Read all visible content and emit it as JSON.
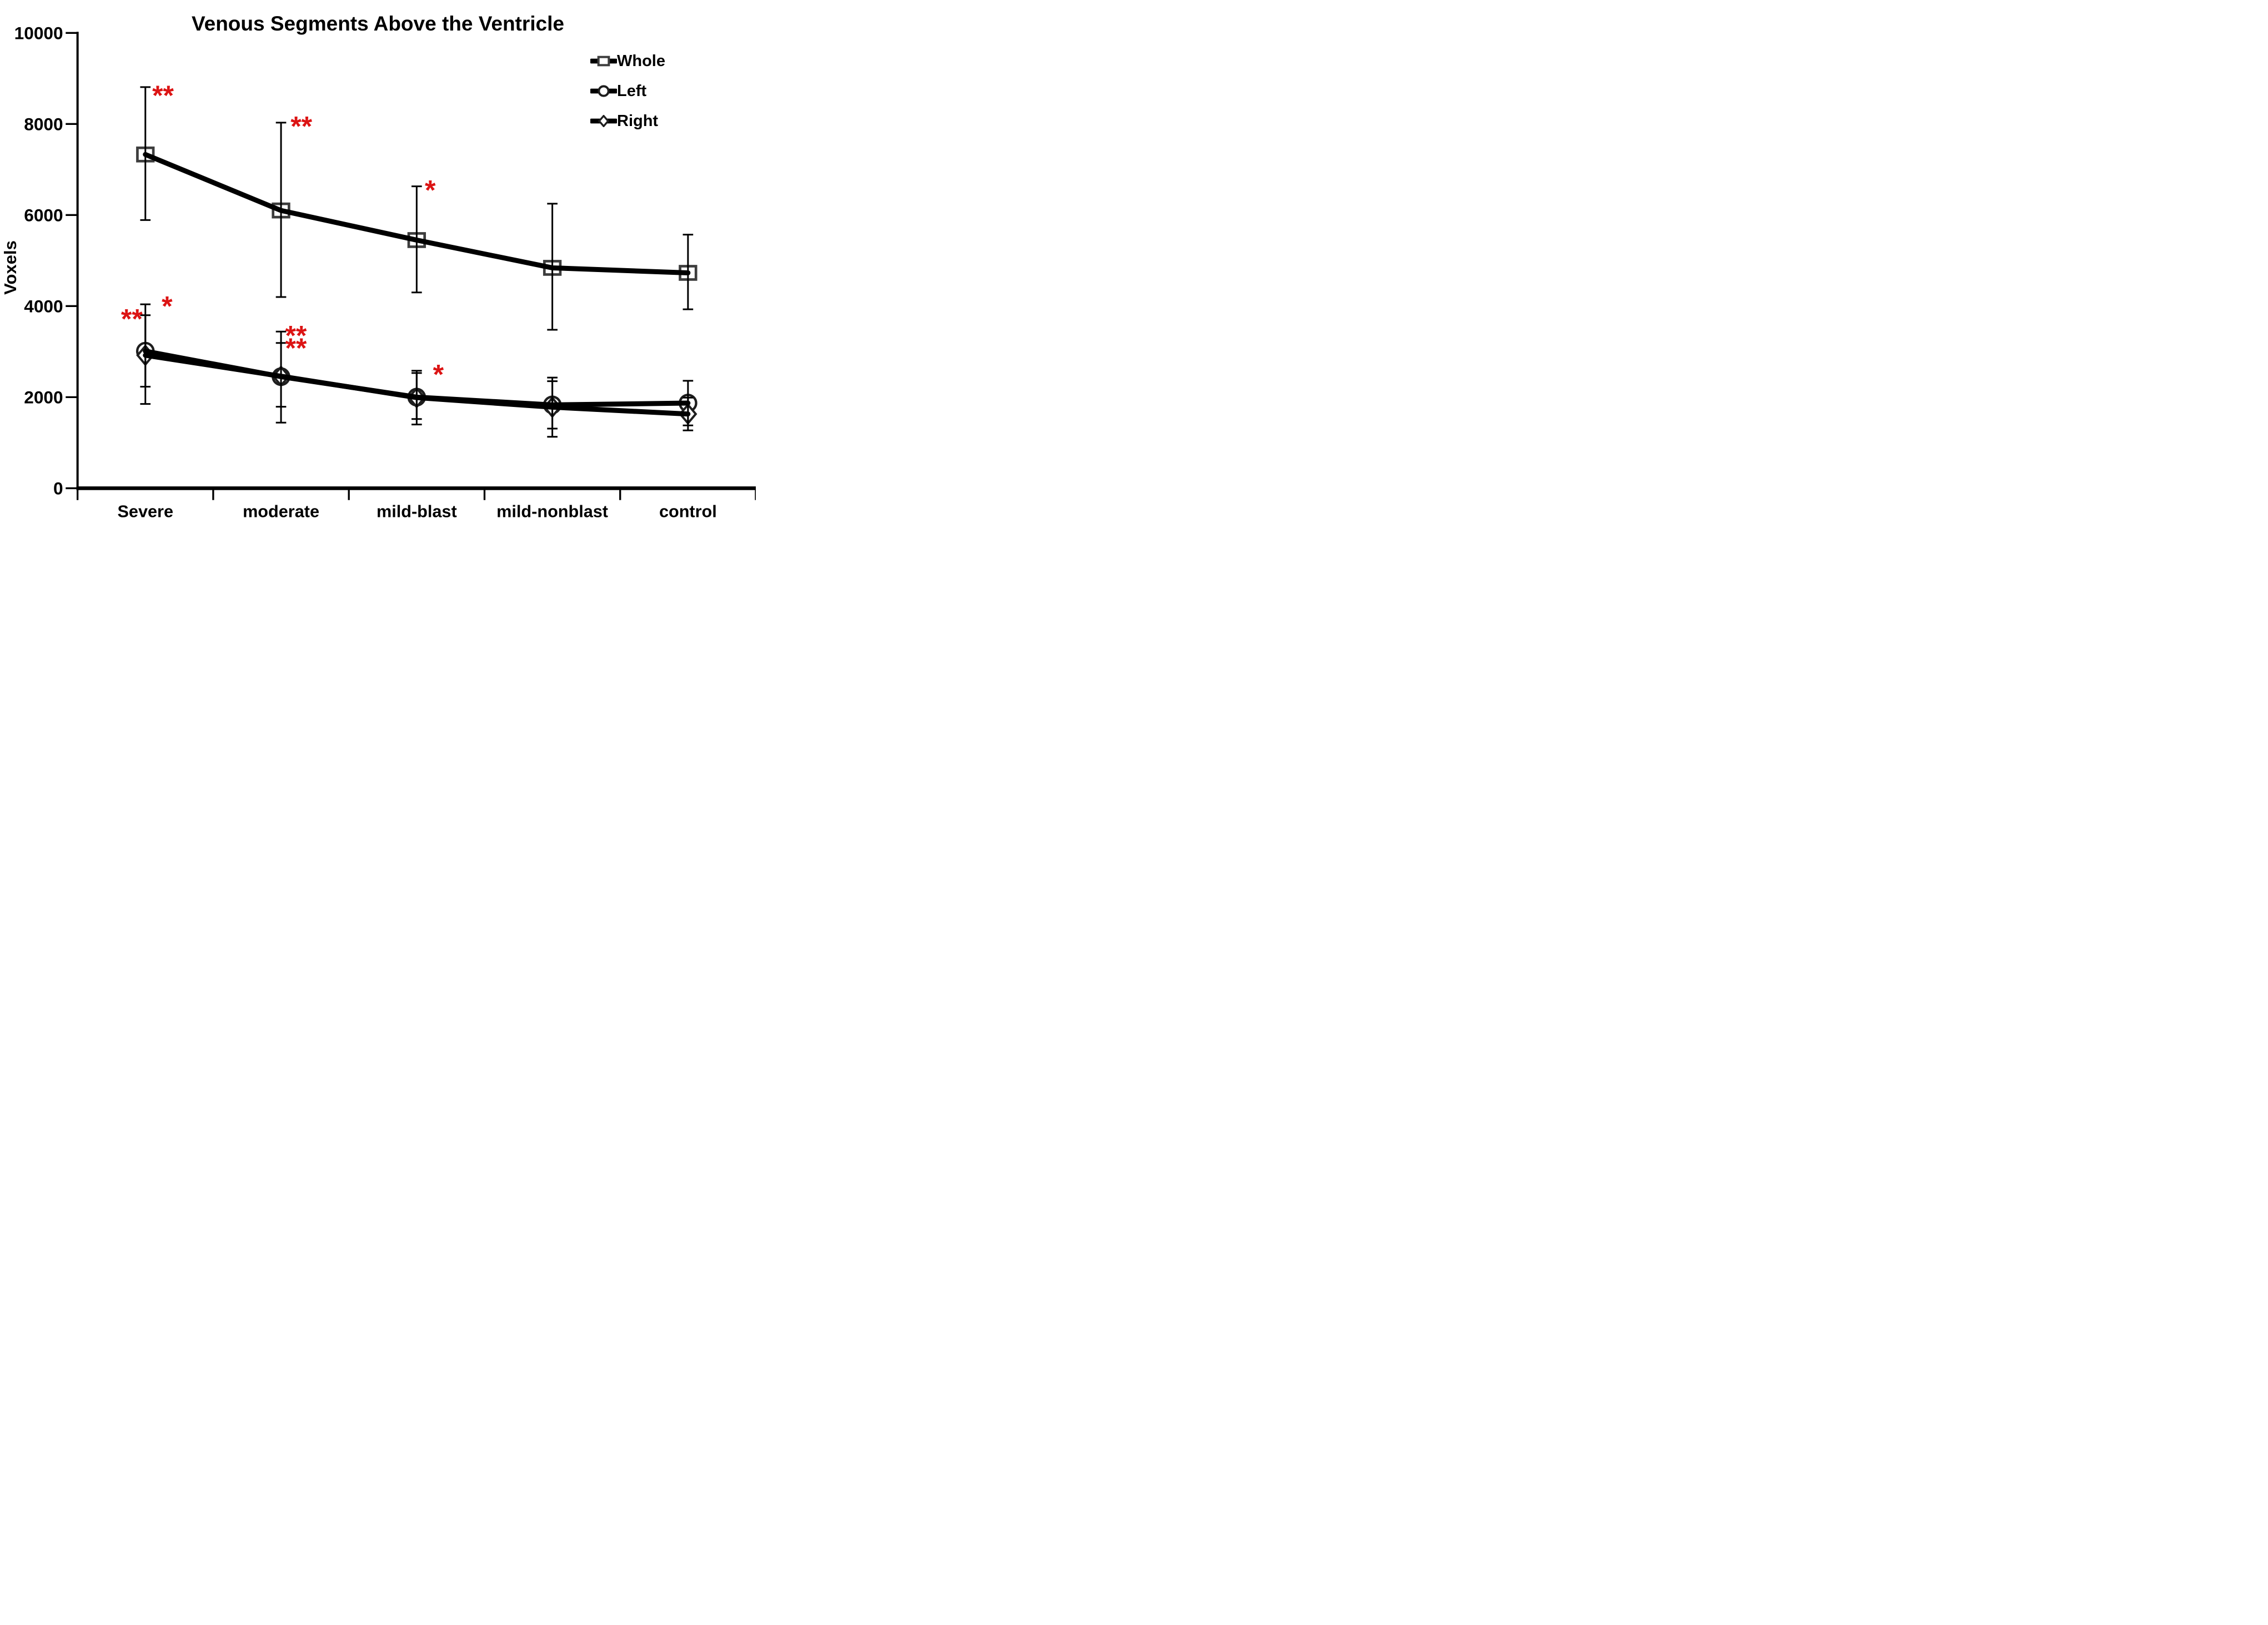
{
  "chart_data": {
    "type": "line",
    "title": "Venous Segments Above the Ventricle",
    "xlabel": "",
    "ylabel": "Voxels",
    "ylim": [
      0,
      10000
    ],
    "y_ticks": [
      0,
      2000,
      4000,
      6000,
      8000,
      10000
    ],
    "grid": false,
    "legend_position": "top-right",
    "categories": [
      "Severe",
      "moderate",
      "mild-blast",
      "mild-nonblast",
      "control"
    ],
    "series": [
      {
        "name": "Whole",
        "marker": "square",
        "values": [
          7330,
          6100,
          5450,
          4840,
          4730
        ],
        "err_hi": [
          8810,
          8030,
          6630,
          6250,
          5570
        ],
        "err_lo": [
          5890,
          4200,
          4300,
          3480,
          3930
        ]
      },
      {
        "name": "Left",
        "marker": "circle",
        "values": [
          3010,
          2450,
          2000,
          1830,
          1870
        ],
        "err_hi": [
          4040,
          3440,
          2580,
          2350,
          2360
        ],
        "err_lo": [
          1850,
          1440,
          1400,
          1310,
          1380
        ]
      },
      {
        "name": "Right",
        "marker": "diamond",
        "values": [
          2920,
          2460,
          1990,
          1780,
          1630
        ],
        "err_hi": [
          3800,
          3190,
          2530,
          2430,
          1990
        ],
        "err_lo": [
          2230,
          1790,
          1520,
          1130,
          1270
        ]
      }
    ],
    "annotations": [
      {
        "text": "**",
        "x_cat": 0.13,
        "value": 8730
      },
      {
        "text": "*",
        "x_cat": 0.16,
        "value": 4100
      },
      {
        "text": "**",
        "x_cat": -0.1,
        "value": 3820
      },
      {
        "text": "**",
        "x_cat": 1.15,
        "value": 8050
      },
      {
        "text": "**",
        "x_cat": 1.11,
        "value": 3455
      },
      {
        "text": "**",
        "x_cat": 1.11,
        "value": 3180
      },
      {
        "text": "*",
        "x_cat": 2.1,
        "value": 6650
      },
      {
        "text": "*",
        "x_cat": 2.16,
        "value": 2600
      }
    ],
    "colors": {
      "line": "#000000",
      "annotation": "#dc1414",
      "square_stroke": "#3d3d3d",
      "round_stroke": "#1e1e1e",
      "background": "#ffffff"
    }
  }
}
